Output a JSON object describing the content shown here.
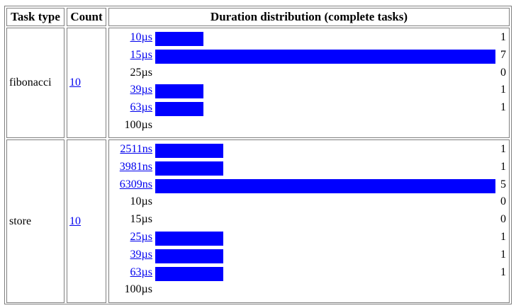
{
  "headers": {
    "task_type": "Task type",
    "count": "Count",
    "distribution": "Duration distribution (complete tasks)"
  },
  "groups": [
    {
      "task_type": "fibonacci",
      "count": "10",
      "max_count": 7,
      "rows": [
        {
          "label": "10µs",
          "link": true,
          "count": 1
        },
        {
          "label": "15µs",
          "link": true,
          "count": 7
        },
        {
          "label": "25µs",
          "link": false,
          "count": 0
        },
        {
          "label": "39µs",
          "link": true,
          "count": 1
        },
        {
          "label": "63µs",
          "link": true,
          "count": 1
        },
        {
          "label": "100µs",
          "link": false,
          "count": null
        }
      ]
    },
    {
      "task_type": "store",
      "count": "10",
      "max_count": 5,
      "rows": [
        {
          "label": "2511ns",
          "link": true,
          "count": 1
        },
        {
          "label": "3981ns",
          "link": true,
          "count": 1
        },
        {
          "label": "6309ns",
          "link": true,
          "count": 5
        },
        {
          "label": "10µs",
          "link": false,
          "count": 0
        },
        {
          "label": "15µs",
          "link": false,
          "count": 0
        },
        {
          "label": "25µs",
          "link": true,
          "count": 1
        },
        {
          "label": "39µs",
          "link": true,
          "count": 1
        },
        {
          "label": "63µs",
          "link": true,
          "count": 1
        },
        {
          "label": "100µs",
          "link": false,
          "count": null
        }
      ]
    }
  ]
}
